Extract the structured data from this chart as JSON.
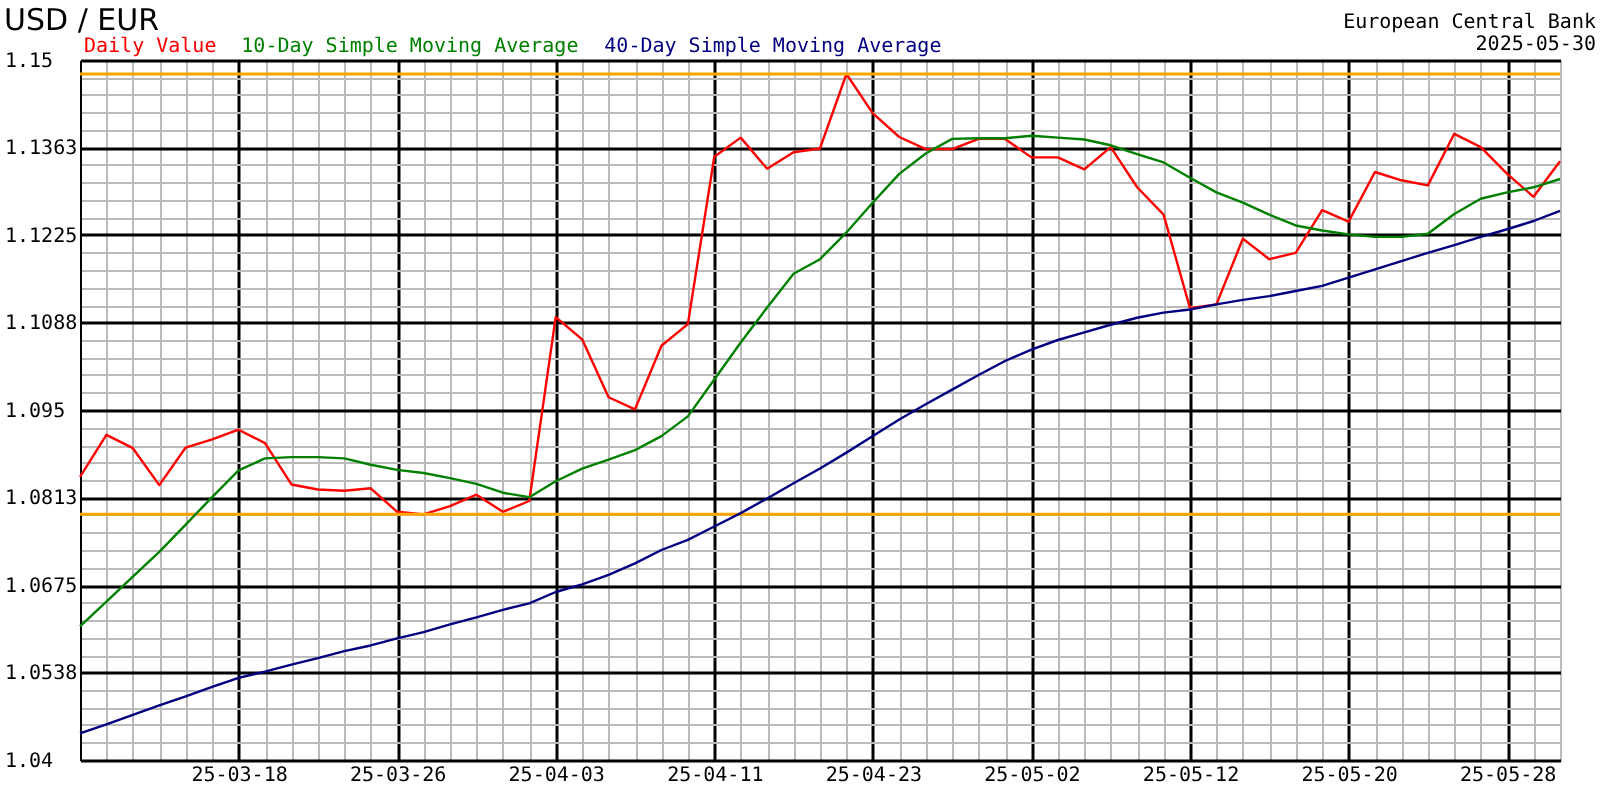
{
  "chart_data": {
    "type": "line",
    "title": "USD / EUR",
    "annotations": [
      "European Central Bank",
      "2025-05-30"
    ],
    "categories": [
      null,
      null,
      null,
      null,
      null,
      null,
      "25-03-18",
      null,
      null,
      null,
      null,
      null,
      "25-03-26",
      null,
      null,
      null,
      null,
      null,
      "25-04-03",
      null,
      null,
      null,
      null,
      null,
      "25-04-11",
      null,
      null,
      null,
      null,
      null,
      "25-04-23",
      null,
      null,
      null,
      null,
      null,
      "25-05-02",
      null,
      null,
      null,
      null,
      null,
      "25-05-12",
      null,
      null,
      null,
      null,
      null,
      "25-05-20",
      null,
      null,
      null,
      null,
      null,
      "25-05-28",
      null,
      null
    ],
    "series": [
      {
        "name": "Daily Value",
        "color": "#ff0000",
        "values": [
          1.0845,
          1.0911,
          1.089,
          1.0832,
          1.0891,
          1.0904,
          1.0919,
          1.0898,
          1.0833,
          1.0825,
          1.0823,
          1.0827,
          1.079,
          1.0786,
          1.0799,
          1.0817,
          1.079,
          1.0807,
          1.1096,
          1.1061,
          1.097,
          1.0951,
          1.1051,
          1.1085,
          1.1348,
          1.1378,
          1.1329,
          1.1355,
          1.1361,
          1.1478,
          1.1416,
          1.1379,
          1.136,
          1.136,
          1.1376,
          1.1376,
          1.1347,
          1.1347,
          1.1328,
          1.1363,
          1.13,
          1.1257,
          1.111,
          1.1116,
          1.1219,
          1.1187,
          1.1197,
          1.1264,
          1.1246,
          1.1324,
          1.1311,
          1.1303,
          1.1384,
          1.1363,
          1.1321,
          1.1285,
          1.1341
        ]
      },
      {
        "name": "10-Day Simple Moving Average",
        "color": "#008000",
        "values": [
          1.061,
          1.0649,
          1.0688,
          1.0727,
          1.077,
          1.0813,
          1.0855,
          1.0874,
          1.0876,
          1.0876,
          1.0874,
          1.0864,
          1.0856,
          1.0851,
          1.0843,
          1.0834,
          1.082,
          1.0813,
          1.0838,
          1.0858,
          1.0872,
          1.0887,
          1.0909,
          1.094,
          1.0998,
          1.1056,
          1.1111,
          1.1164,
          1.1187,
          1.1229,
          1.1276,
          1.1321,
          1.1353,
          1.1376,
          1.1377,
          1.1377,
          1.1381,
          1.1378,
          1.1375,
          1.1366,
          1.1352,
          1.1339,
          1.1315,
          1.1292,
          1.1276,
          1.1257,
          1.124,
          1.1232,
          1.1226,
          1.1222,
          1.1222,
          1.1227,
          1.1258,
          1.1282,
          1.1292,
          1.13,
          1.1313
        ]
      },
      {
        "name": "40-Day Simple Moving Average",
        "color": "#000080",
        "values": [
          1.0442,
          1.0456,
          1.0471,
          1.0486,
          1.05,
          1.0515,
          1.0529,
          1.0539,
          1.055,
          1.056,
          1.0571,
          1.058,
          1.0591,
          1.0601,
          1.0613,
          1.0624,
          1.0636,
          1.0646,
          1.0664,
          1.0676,
          1.0691,
          1.0709,
          1.073,
          1.0746,
          1.0767,
          1.0788,
          1.0811,
          1.0835,
          1.0858,
          1.0883,
          1.0909,
          1.0935,
          1.0959,
          1.0982,
          1.1005,
          1.1027,
          1.1045,
          1.106,
          1.1072,
          1.1084,
          1.1095,
          1.1103,
          1.1108,
          1.1116,
          1.1123,
          1.1129,
          1.1137,
          1.1145,
          1.1158,
          1.1171,
          1.1184,
          1.1197,
          1.1209,
          1.1222,
          1.1234,
          1.1247,
          1.1263
        ]
      }
    ],
    "ylim": [
      1.04,
      1.15
    ],
    "yticks": [
      1.04,
      {
        "value": 1.04275,
        "label": null
      },
      {
        "value": 1.0455,
        "label": null
      },
      {
        "value": 1.04825,
        "label": null
      },
      {
        "value": 1.051,
        "label": null
      },
      1.0538,
      {
        "value": 1.0565,
        "label": null
      },
      {
        "value": 1.05925,
        "label": null
      },
      {
        "value": 1.062,
        "label": null
      },
      {
        "value": 1.06475,
        "label": null
      },
      1.0675,
      {
        "value": 1.07025,
        "label": null
      },
      {
        "value": 1.073,
        "label": null
      },
      {
        "value": 1.07575,
        "label": null
      },
      {
        "value": 1.0785,
        "label": null
      },
      1.0813,
      {
        "value": 1.084,
        "label": null
      },
      {
        "value": 1.08675,
        "label": null
      },
      {
        "value": 1.0895,
        "label": null
      },
      {
        "value": 1.09225,
        "label": null
      },
      1.095,
      {
        "value": 1.09775,
        "label": null
      },
      {
        "value": 1.1005,
        "label": null
      },
      {
        "value": 1.10325,
        "label": null
      },
      {
        "value": 1.106,
        "label": null
      },
      1.1088,
      {
        "value": 1.1115,
        "label": null
      },
      {
        "value": 1.11425,
        "label": null
      },
      {
        "value": 1.117,
        "label": null
      },
      {
        "value": 1.11975,
        "label": null
      },
      1.1225,
      {
        "value": 1.12525,
        "label": null
      },
      {
        "value": 1.128,
        "label": null
      },
      {
        "value": 1.13075,
        "label": null
      },
      {
        "value": 1.1335,
        "label": null
      },
      1.1363,
      {
        "value": 1.139,
        "label": null
      },
      {
        "value": 1.14175,
        "label": null
      },
      {
        "value": 1.1445,
        "label": null
      },
      {
        "value": 1.14725,
        "label": null
      },
      1.15
    ],
    "ref_lines": [
      {
        "axis": "y",
        "value": 1.1478,
        "color": "#ffa500"
      },
      {
        "axis": "y",
        "value": 1.0786,
        "color": "#ffa500"
      }
    ],
    "grid": true,
    "legend": "top",
    "line_style": "solid"
  }
}
